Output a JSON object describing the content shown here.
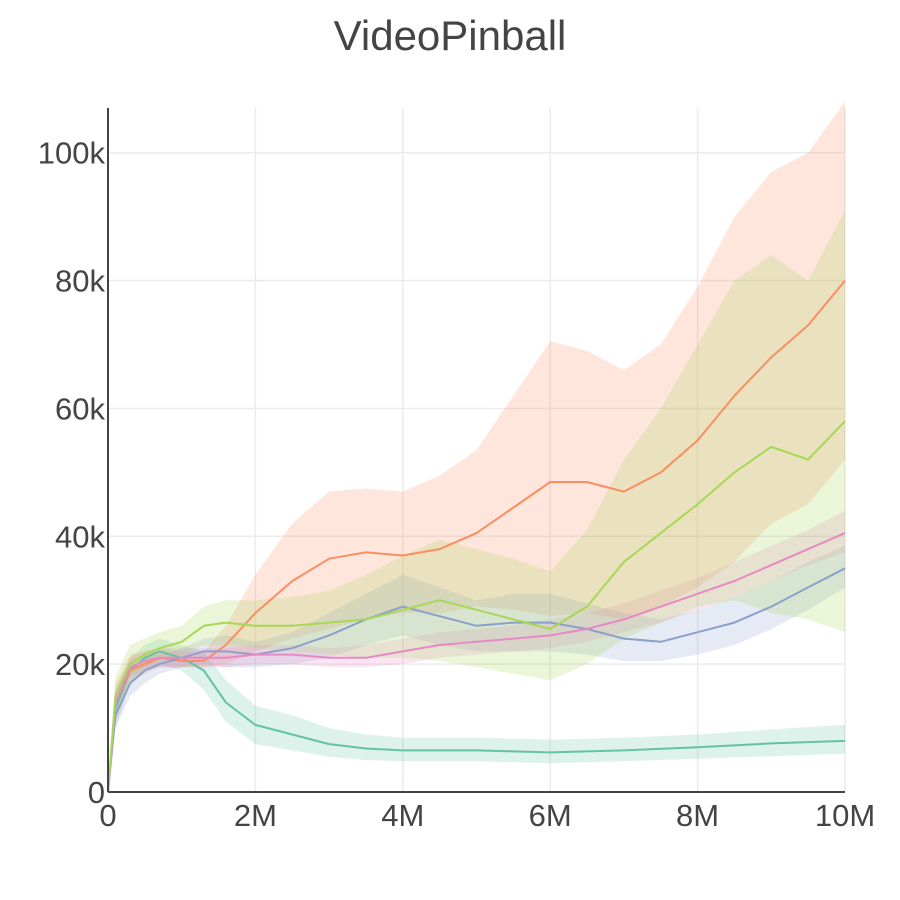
{
  "chart_data": {
    "type": "line",
    "title": "VideoPinball",
    "xlabel": "",
    "ylabel": "",
    "xlim": [
      0,
      10000000
    ],
    "ylim": [
      0,
      107000
    ],
    "x_ticks": [
      {
        "value": 0,
        "label": "0"
      },
      {
        "value": 2000000,
        "label": "2M"
      },
      {
        "value": 4000000,
        "label": "4M"
      },
      {
        "value": 6000000,
        "label": "6M"
      },
      {
        "value": 8000000,
        "label": "8M"
      },
      {
        "value": 10000000,
        "label": "10M"
      }
    ],
    "y_ticks": [
      {
        "value": 0,
        "label": "0"
      },
      {
        "value": 20000,
        "label": "20k"
      },
      {
        "value": 40000,
        "label": "40k"
      },
      {
        "value": 60000,
        "label": "60k"
      },
      {
        "value": 80000,
        "label": "80k"
      },
      {
        "value": 100000,
        "label": "100k"
      }
    ],
    "grid": true,
    "legend": "none",
    "series": [
      {
        "color": "#66c2a5",
        "x": [
          0,
          100000,
          300000,
          500000,
          700000,
          1000000,
          1300000,
          1600000,
          2000000,
          2500000,
          3000000,
          3500000,
          4000000,
          5000000,
          6000000,
          7000000,
          8000000,
          9000000,
          10000000
        ],
        "y": [
          0,
          13000,
          19000,
          21000,
          22000,
          21000,
          19000,
          14000,
          10500,
          9000,
          7500,
          6800,
          6500,
          6500,
          6200,
          6500,
          7000,
          7600,
          8000
        ],
        "y_lower": [
          0,
          10000,
          17000,
          19000,
          20000,
          19000,
          16000,
          11000,
          7500,
          6500,
          5500,
          5000,
          4800,
          4800,
          4500,
          4800,
          5200,
          5600,
          6000
        ],
        "y_upper": [
          0,
          16000,
          21000,
          23000,
          24000,
          23000,
          22000,
          17500,
          13500,
          12000,
          10000,
          9000,
          8500,
          8500,
          8200,
          8500,
          9000,
          9800,
          10500
        ]
      },
      {
        "color": "#fc8d62",
        "x": [
          0,
          100000,
          300000,
          500000,
          700000,
          1000000,
          1300000,
          1600000,
          2000000,
          2500000,
          3000000,
          3500000,
          4000000,
          4500000,
          5000000,
          5500000,
          6000000,
          6500000,
          7000000,
          7500000,
          8000000,
          8500000,
          9000000,
          9500000,
          10000000
        ],
        "y": [
          0,
          14000,
          19000,
          20000,
          21000,
          20500,
          20500,
          23000,
          28000,
          33000,
          36500,
          37500,
          37000,
          38000,
          40500,
          44500,
          48500,
          48500,
          47000,
          50000,
          55000,
          62000,
          68000,
          73000,
          80000
        ],
        "y_lower": [
          0,
          11000,
          17000,
          18500,
          19500,
          19500,
          19500,
          20000,
          22000,
          24000,
          25500,
          27000,
          28000,
          28000,
          29000,
          28500,
          27500,
          28000,
          27000,
          29000,
          32000,
          36000,
          42000,
          45000,
          52000
        ],
        "y_upper": [
          0,
          17000,
          21500,
          22000,
          22500,
          22000,
          22000,
          26000,
          34000,
          42000,
          47000,
          47500,
          47000,
          49500,
          53500,
          62000,
          70500,
          69000,
          66000,
          70000,
          79000,
          90000,
          97000,
          100000,
          108000
        ]
      },
      {
        "color": "#8da0cb",
        "x": [
          0,
          100000,
          300000,
          500000,
          700000,
          1000000,
          1300000,
          1600000,
          2000000,
          2500000,
          3000000,
          3500000,
          4000000,
          4500000,
          5000000,
          5500000,
          6000000,
          6500000,
          7000000,
          7500000,
          8000000,
          8500000,
          9000000,
          9500000,
          10000000
        ],
        "y": [
          0,
          12000,
          17000,
          19000,
          20000,
          21000,
          22000,
          22000,
          21500,
          22500,
          24500,
          27000,
          29000,
          27500,
          26000,
          26500,
          26500,
          25500,
          24000,
          23500,
          25000,
          26500,
          29000,
          32000,
          35000
        ],
        "y_lower": [
          0,
          10000,
          15000,
          17000,
          18500,
          19500,
          20000,
          19500,
          19500,
          20000,
          21000,
          23000,
          24500,
          23000,
          22000,
          22000,
          22000,
          21500,
          20500,
          20500,
          21500,
          23000,
          25500,
          28500,
          32000
        ],
        "y_upper": [
          0,
          14000,
          19000,
          21000,
          21500,
          22500,
          24000,
          24500,
          23500,
          25000,
          28000,
          31000,
          34000,
          32000,
          30000,
          31000,
          31000,
          29500,
          28000,
          27000,
          28500,
          30500,
          33000,
          36000,
          38500
        ]
      },
      {
        "color": "#e78ac3",
        "x": [
          0,
          100000,
          300000,
          500000,
          700000,
          1000000,
          1300000,
          1600000,
          2000000,
          2500000,
          3000000,
          3500000,
          4000000,
          4500000,
          5000000,
          5500000,
          6000000,
          6500000,
          7000000,
          7500000,
          8000000,
          8500000,
          9000000,
          9500000,
          10000000
        ],
        "y": [
          0,
          14000,
          19500,
          20500,
          21000,
          21000,
          21000,
          21000,
          21500,
          21500,
          21000,
          21000,
          22000,
          23000,
          23500,
          24000,
          24500,
          25500,
          27000,
          29000,
          31000,
          33000,
          35500,
          38000,
          40500
        ],
        "y_lower": [
          0,
          12000,
          18000,
          19000,
          19500,
          19500,
          19500,
          19500,
          20000,
          20000,
          19500,
          19500,
          20000,
          21000,
          21500,
          22000,
          22500,
          23500,
          25000,
          26500,
          28500,
          30500,
          33000,
          35500,
          37500
        ],
        "y_upper": [
          0,
          16000,
          21000,
          22000,
          22500,
          22500,
          22500,
          22500,
          23000,
          23000,
          22500,
          23000,
          24000,
          25000,
          25500,
          26000,
          27000,
          28000,
          29500,
          31500,
          33500,
          36000,
          38500,
          41000,
          44000
        ]
      },
      {
        "color": "#a6d854",
        "x": [
          0,
          100000,
          300000,
          500000,
          700000,
          1000000,
          1300000,
          1600000,
          2000000,
          2500000,
          3000000,
          3500000,
          4000000,
          4500000,
          5000000,
          5500000,
          6000000,
          6500000,
          7000000,
          7500000,
          8000000,
          8500000,
          9000000,
          9500000,
          10000000
        ],
        "y": [
          0,
          15000,
          20000,
          21500,
          22500,
          23500,
          26000,
          26500,
          26000,
          26000,
          26500,
          27000,
          28500,
          30000,
          28500,
          27000,
          25500,
          29000,
          36000,
          40500,
          45000,
          50000,
          54000,
          52000,
          58000
        ],
        "y_lower": [
          0,
          12000,
          18000,
          19500,
          20500,
          21500,
          23000,
          23000,
          22500,
          22000,
          21500,
          21000,
          21000,
          20500,
          19500,
          18500,
          17500,
          20000,
          24000,
          26500,
          29000,
          30000,
          28000,
          27000,
          25000
        ],
        "y_upper": [
          0,
          18000,
          23000,
          24000,
          25000,
          26000,
          29000,
          30000,
          30000,
          30500,
          31500,
          34000,
          37000,
          39500,
          38000,
          36500,
          34500,
          41000,
          52000,
          60000,
          70000,
          80000,
          84000,
          80000,
          91000
        ]
      }
    ]
  }
}
